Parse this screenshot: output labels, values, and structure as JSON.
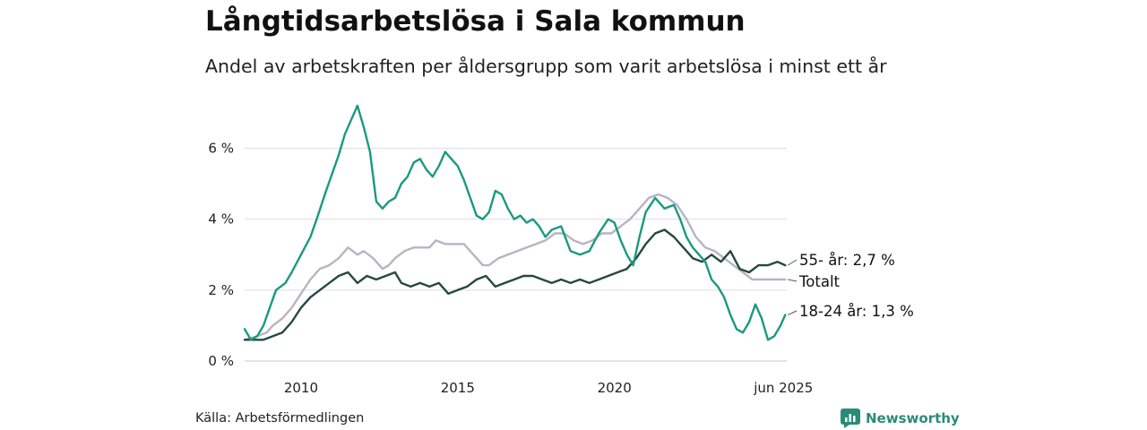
{
  "header": {
    "title": "Långtidsarbetslösa i Sala kommun",
    "subtitle": "Andel av arbetskraften per åldersgrupp som varit arbetslösa i minst ett år"
  },
  "footer": {
    "source": "Källa: Arbetsförmedlingen",
    "brand": "Newsworthy"
  },
  "chart_data": {
    "type": "line",
    "x_unit": "decimal year",
    "y_unit": "percent",
    "xlim": [
      2008.2,
      2025.5
    ],
    "ylim": [
      0,
      7.2
    ],
    "grid": true,
    "y_ticks": [
      {
        "value": 0,
        "label": "0 %"
      },
      {
        "value": 2,
        "label": "2 %"
      },
      {
        "value": 4,
        "label": "4 %"
      },
      {
        "value": 6,
        "label": "6 %"
      }
    ],
    "x_ticks": [
      {
        "value": 2010,
        "label": "2010"
      },
      {
        "value": 2015,
        "label": "2015"
      },
      {
        "value": 2020,
        "label": "2020"
      },
      {
        "value": 2025.45,
        "label": "jun 2025"
      }
    ],
    "series": [
      {
        "name": "Totalt",
        "end_label": "Totalt",
        "color": "#b9b3c4",
        "points": [
          [
            2008.2,
            0.6
          ],
          [
            2008.6,
            0.7
          ],
          [
            2008.9,
            0.8
          ],
          [
            2009.1,
            1.0
          ],
          [
            2009.4,
            1.2
          ],
          [
            2009.7,
            1.5
          ],
          [
            2010.0,
            1.9
          ],
          [
            2010.3,
            2.3
          ],
          [
            2010.6,
            2.6
          ],
          [
            2010.9,
            2.7
          ],
          [
            2011.2,
            2.9
          ],
          [
            2011.4,
            3.1
          ],
          [
            2011.5,
            3.2
          ],
          [
            2011.8,
            3.0
          ],
          [
            2012.0,
            3.1
          ],
          [
            2012.3,
            2.9
          ],
          [
            2012.6,
            2.6
          ],
          [
            2012.8,
            2.7
          ],
          [
            2013.0,
            2.9
          ],
          [
            2013.3,
            3.1
          ],
          [
            2013.6,
            3.2
          ],
          [
            2013.9,
            3.2
          ],
          [
            2014.1,
            3.2
          ],
          [
            2014.3,
            3.4
          ],
          [
            2014.6,
            3.3
          ],
          [
            2014.9,
            3.3
          ],
          [
            2015.2,
            3.3
          ],
          [
            2015.5,
            3.0
          ],
          [
            2015.8,
            2.7
          ],
          [
            2016.0,
            2.7
          ],
          [
            2016.3,
            2.9
          ],
          [
            2016.6,
            3.0
          ],
          [
            2016.9,
            3.1
          ],
          [
            2017.2,
            3.2
          ],
          [
            2017.5,
            3.3
          ],
          [
            2017.8,
            3.4
          ],
          [
            2018.1,
            3.6
          ],
          [
            2018.4,
            3.6
          ],
          [
            2018.7,
            3.4
          ],
          [
            2019.0,
            3.3
          ],
          [
            2019.3,
            3.4
          ],
          [
            2019.6,
            3.6
          ],
          [
            2019.9,
            3.6
          ],
          [
            2020.2,
            3.8
          ],
          [
            2020.5,
            4.0
          ],
          [
            2020.8,
            4.3
          ],
          [
            2021.1,
            4.6
          ],
          [
            2021.4,
            4.7
          ],
          [
            2021.7,
            4.6
          ],
          [
            2022.0,
            4.4
          ],
          [
            2022.3,
            4.0
          ],
          [
            2022.6,
            3.5
          ],
          [
            2022.9,
            3.2
          ],
          [
            2023.2,
            3.1
          ],
          [
            2023.5,
            2.9
          ],
          [
            2023.8,
            2.7
          ],
          [
            2024.1,
            2.5
          ],
          [
            2024.4,
            2.3
          ],
          [
            2024.7,
            2.3
          ],
          [
            2025.0,
            2.3
          ],
          [
            2025.45,
            2.3
          ]
        ]
      },
      {
        "name": "55- år",
        "end_label": "55- år: 2,7 %",
        "color": "#25493f",
        "points": [
          [
            2008.2,
            0.6
          ],
          [
            2008.5,
            0.6
          ],
          [
            2008.8,
            0.6
          ],
          [
            2009.1,
            0.7
          ],
          [
            2009.4,
            0.8
          ],
          [
            2009.7,
            1.1
          ],
          [
            2010.0,
            1.5
          ],
          [
            2010.3,
            1.8
          ],
          [
            2010.6,
            2.0
          ],
          [
            2010.9,
            2.2
          ],
          [
            2011.2,
            2.4
          ],
          [
            2011.5,
            2.5
          ],
          [
            2011.8,
            2.2
          ],
          [
            2012.1,
            2.4
          ],
          [
            2012.4,
            2.3
          ],
          [
            2012.7,
            2.4
          ],
          [
            2013.0,
            2.5
          ],
          [
            2013.2,
            2.2
          ],
          [
            2013.5,
            2.1
          ],
          [
            2013.8,
            2.2
          ],
          [
            2014.1,
            2.1
          ],
          [
            2014.4,
            2.2
          ],
          [
            2014.7,
            1.9
          ],
          [
            2015.0,
            2.0
          ],
          [
            2015.3,
            2.1
          ],
          [
            2015.6,
            2.3
          ],
          [
            2015.9,
            2.4
          ],
          [
            2016.2,
            2.1
          ],
          [
            2016.5,
            2.2
          ],
          [
            2016.8,
            2.3
          ],
          [
            2017.1,
            2.4
          ],
          [
            2017.4,
            2.4
          ],
          [
            2017.7,
            2.3
          ],
          [
            2018.0,
            2.2
          ],
          [
            2018.3,
            2.3
          ],
          [
            2018.6,
            2.2
          ],
          [
            2018.9,
            2.3
          ],
          [
            2019.2,
            2.2
          ],
          [
            2019.5,
            2.3
          ],
          [
            2019.8,
            2.4
          ],
          [
            2020.1,
            2.5
          ],
          [
            2020.4,
            2.6
          ],
          [
            2020.7,
            2.9
          ],
          [
            2021.0,
            3.3
          ],
          [
            2021.3,
            3.6
          ],
          [
            2021.6,
            3.7
          ],
          [
            2021.9,
            3.5
          ],
          [
            2022.2,
            3.2
          ],
          [
            2022.5,
            2.9
          ],
          [
            2022.8,
            2.8
          ],
          [
            2023.1,
            3.0
          ],
          [
            2023.4,
            2.8
          ],
          [
            2023.7,
            3.1
          ],
          [
            2024.0,
            2.6
          ],
          [
            2024.3,
            2.5
          ],
          [
            2024.6,
            2.7
          ],
          [
            2024.9,
            2.7
          ],
          [
            2025.2,
            2.8
          ],
          [
            2025.45,
            2.7
          ]
        ]
      },
      {
        "name": "18-24 år",
        "end_label": "18-24 år: 1,3 %",
        "color": "#1a9982",
        "points": [
          [
            2008.2,
            0.9
          ],
          [
            2008.4,
            0.6
          ],
          [
            2008.6,
            0.7
          ],
          [
            2008.8,
            1.0
          ],
          [
            2009.0,
            1.5
          ],
          [
            2009.2,
            2.0
          ],
          [
            2009.5,
            2.2
          ],
          [
            2009.7,
            2.5
          ],
          [
            2010.0,
            3.0
          ],
          [
            2010.3,
            3.5
          ],
          [
            2010.5,
            4.0
          ],
          [
            2010.8,
            4.8
          ],
          [
            2011.0,
            5.3
          ],
          [
            2011.2,
            5.8
          ],
          [
            2011.4,
            6.4
          ],
          [
            2011.6,
            6.8
          ],
          [
            2011.8,
            7.2
          ],
          [
            2012.0,
            6.6
          ],
          [
            2012.2,
            5.9
          ],
          [
            2012.4,
            4.5
          ],
          [
            2012.6,
            4.3
          ],
          [
            2012.8,
            4.5
          ],
          [
            2013.0,
            4.6
          ],
          [
            2013.2,
            5.0
          ],
          [
            2013.4,
            5.2
          ],
          [
            2013.6,
            5.6
          ],
          [
            2013.8,
            5.7
          ],
          [
            2014.0,
            5.4
          ],
          [
            2014.2,
            5.2
          ],
          [
            2014.4,
            5.5
          ],
          [
            2014.6,
            5.9
          ],
          [
            2014.8,
            5.7
          ],
          [
            2015.0,
            5.5
          ],
          [
            2015.2,
            5.1
          ],
          [
            2015.4,
            4.6
          ],
          [
            2015.6,
            4.1
          ],
          [
            2015.8,
            4.0
          ],
          [
            2016.0,
            4.2
          ],
          [
            2016.2,
            4.8
          ],
          [
            2016.4,
            4.7
          ],
          [
            2016.6,
            4.3
          ],
          [
            2016.8,
            4.0
          ],
          [
            2017.0,
            4.1
          ],
          [
            2017.2,
            3.9
          ],
          [
            2017.4,
            4.0
          ],
          [
            2017.6,
            3.8
          ],
          [
            2017.8,
            3.5
          ],
          [
            2018.0,
            3.7
          ],
          [
            2018.3,
            3.8
          ],
          [
            2018.6,
            3.1
          ],
          [
            2018.9,
            3.0
          ],
          [
            2019.2,
            3.1
          ],
          [
            2019.5,
            3.6
          ],
          [
            2019.8,
            4.0
          ],
          [
            2020.0,
            3.9
          ],
          [
            2020.2,
            3.4
          ],
          [
            2020.4,
            3.0
          ],
          [
            2020.6,
            2.7
          ],
          [
            2020.8,
            3.5
          ],
          [
            2021.0,
            4.2
          ],
          [
            2021.3,
            4.6
          ],
          [
            2021.6,
            4.3
          ],
          [
            2021.9,
            4.4
          ],
          [
            2022.1,
            4.0
          ],
          [
            2022.3,
            3.5
          ],
          [
            2022.5,
            3.2
          ],
          [
            2022.7,
            3.0
          ],
          [
            2022.9,
            2.8
          ],
          [
            2023.1,
            2.3
          ],
          [
            2023.3,
            2.1
          ],
          [
            2023.5,
            1.8
          ],
          [
            2023.7,
            1.3
          ],
          [
            2023.9,
            0.9
          ],
          [
            2024.1,
            0.8
          ],
          [
            2024.3,
            1.1
          ],
          [
            2024.5,
            1.6
          ],
          [
            2024.7,
            1.2
          ],
          [
            2024.9,
            0.6
          ],
          [
            2025.1,
            0.7
          ],
          [
            2025.3,
            1.0
          ],
          [
            2025.45,
            1.3
          ]
        ]
      }
    ]
  }
}
